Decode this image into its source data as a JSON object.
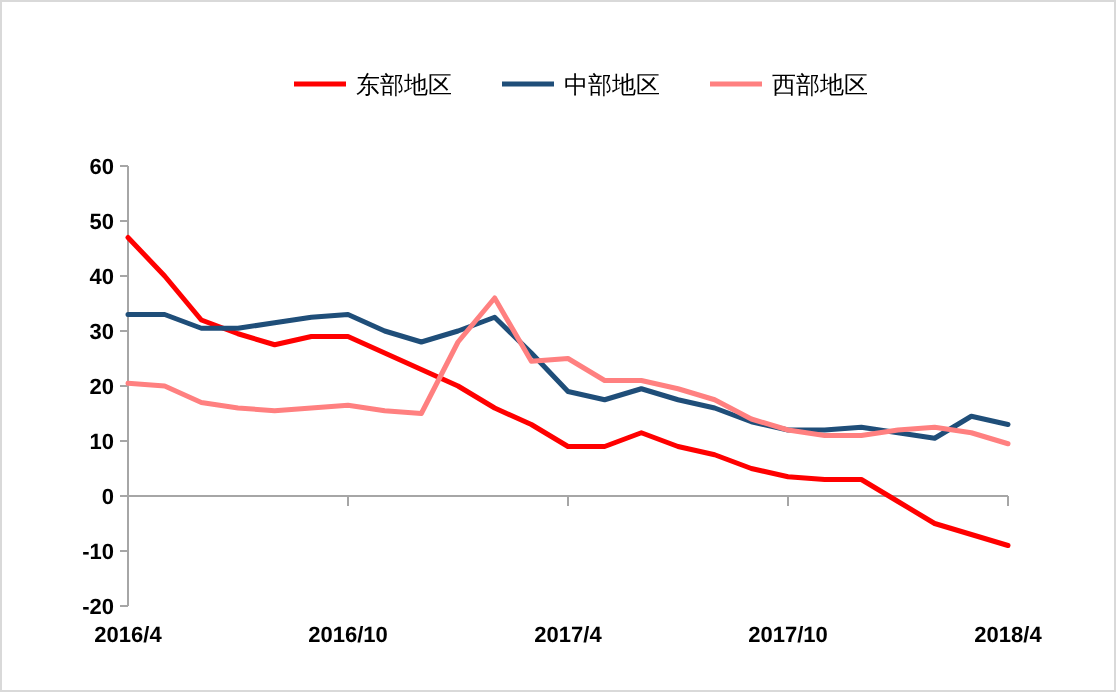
{
  "chart_data": {
    "type": "line",
    "x": [
      "2016-04",
      "2016-05",
      "2016-06",
      "2016-07",
      "2016-08",
      "2016-09",
      "2016-10",
      "2016-11",
      "2016-12",
      "2017-01",
      "2017-02",
      "2017-03",
      "2017-04",
      "2017-05",
      "2017-06",
      "2017-07",
      "2017-08",
      "2017-09",
      "2017-10",
      "2017-11",
      "2017-12",
      "2018-01",
      "2018-02",
      "2018-03",
      "2018-04"
    ],
    "series": [
      {
        "name": "东部地区",
        "color": "#ff0000",
        "values": [
          47,
          40,
          32,
          29.5,
          27.5,
          29,
          29,
          26,
          23,
          20,
          16,
          13,
          9,
          9,
          11.5,
          9,
          7.5,
          5,
          3.5,
          3,
          3,
          -1,
          -5,
          -7,
          -9
        ]
      },
      {
        "name": "中部地区",
        "color": "#1f4e79",
        "values": [
          33,
          33,
          30.5,
          30.5,
          31.5,
          32.5,
          33,
          30,
          28,
          30,
          32.5,
          26,
          19,
          17.5,
          19.5,
          17.5,
          16,
          13.5,
          12,
          12,
          12.5,
          11.5,
          10.5,
          14.5,
          13
        ]
      },
      {
        "name": "西部地区",
        "color": "#ff8080",
        "values": [
          20.5,
          20,
          17,
          16,
          15.5,
          16,
          16.5,
          15.5,
          15,
          28,
          36,
          24.5,
          25,
          21,
          21,
          19.5,
          17.5,
          14,
          12,
          11,
          11,
          12,
          12.5,
          11.5,
          9.5
        ]
      }
    ],
    "xlim": [
      "2016-04",
      "2018-04"
    ],
    "xticks": [
      {
        "value": "2016-04",
        "label": "2016/4"
      },
      {
        "value": "2016-10",
        "label": "2016/10"
      },
      {
        "value": "2017-04",
        "label": "2017/4"
      },
      {
        "value": "2017-10",
        "label": "2017/10"
      },
      {
        "value": "2018-04",
        "label": "2018/4"
      }
    ],
    "ylim": [
      -20,
      60
    ],
    "yticks": [
      -20,
      -10,
      0,
      10,
      20,
      30,
      40,
      50,
      60
    ],
    "legend": "top",
    "marker": "none",
    "line_style": "solid"
  }
}
